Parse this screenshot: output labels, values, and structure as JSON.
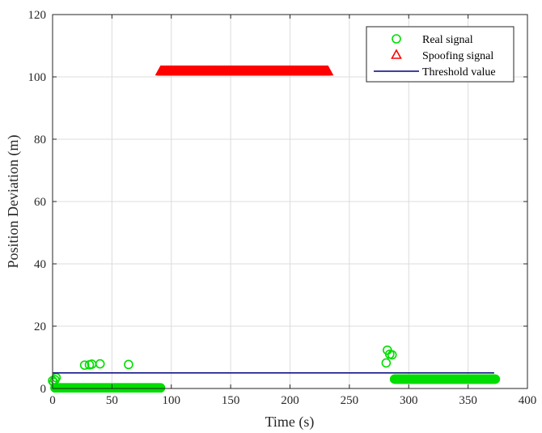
{
  "chart_data": {
    "type": "scatter",
    "title": "",
    "xlabel": "Time (s)",
    "ylabel": "Position Deviation (m)",
    "xlim": [
      0,
      400
    ],
    "ylim": [
      0,
      120
    ],
    "xticks": [
      0,
      50,
      100,
      150,
      200,
      250,
      300,
      350,
      400
    ],
    "yticks": [
      0,
      20,
      40,
      60,
      80,
      100,
      120
    ],
    "grid": true,
    "legend_position": "top-right",
    "series": [
      {
        "name": "Real signal",
        "marker": "circle",
        "color": "#00dd00",
        "x": [
          0,
          1,
          2,
          3,
          27,
          31,
          33,
          40,
          64,
          281,
          282,
          284,
          286
        ],
        "y": [
          2.5,
          2.0,
          2.8,
          3.5,
          7.5,
          7.6,
          7.8,
          7.9,
          7.7,
          8.2,
          12.3,
          11.0,
          10.8
        ],
        "dense_segments": [
          {
            "x_start": 2,
            "x_end": 91,
            "y": 0.2
          },
          {
            "x_start": 288,
            "x_end": 373,
            "y": 3.0
          }
        ]
      },
      {
        "name": "Spoofing signal",
        "marker": "triangle",
        "color": "#ff0000",
        "x": [],
        "y": [],
        "dense_segments": [
          {
            "x_start": 91,
            "x_end": 232,
            "y": 102
          }
        ]
      },
      {
        "name": "Threshold value",
        "marker": "line",
        "color": "#00007f",
        "x": [
          0,
          372
        ],
        "y": [
          5,
          5
        ]
      }
    ]
  }
}
